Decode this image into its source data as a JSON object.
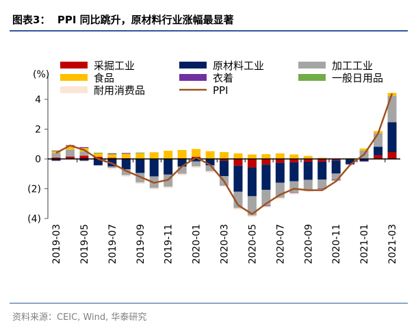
{
  "title": "图表3：  PPI 同比跳升，原材料行业涨幅最显著",
  "source": "资料来源：CEIC, Wind, 华泰研究",
  "chart_data": {
    "type": "bar",
    "stacked": true,
    "ylabel": "(%)",
    "ylim": [
      -4,
      5.6
    ],
    "yticks": [
      4,
      2,
      0,
      -2,
      -4
    ],
    "ytick_labels": [
      "4",
      "2",
      "0",
      "(2)",
      "(4)"
    ],
    "grid": false,
    "legend_position": "top",
    "categories": [
      "2019-03",
      "2019-04",
      "2019-05",
      "2019-06",
      "2019-07",
      "2019-08",
      "2019-09",
      "2019-10",
      "2019-11",
      "2019-12",
      "2020-01",
      "2020-02",
      "2020-03",
      "2020-04",
      "2020-05",
      "2020-06",
      "2020-07",
      "2020-08",
      "2020-09",
      "2020-10",
      "2020-11",
      "2020-12",
      "2021-01",
      "2021-02",
      "2021-03"
    ],
    "xtick_labels": [
      "2019-03",
      "2019-05",
      "2019-07",
      "2019-09",
      "2019-11",
      "2020-01",
      "2020-03",
      "2020-05",
      "2020-07",
      "2020-09",
      "2020-11",
      "2021-01",
      "2021-03"
    ],
    "series": [
      {
        "name": "采掘工业",
        "color": "#C00000",
        "type": "bar",
        "values": [
          0.1,
          0.15,
          0.22,
          0.15,
          0.08,
          0.05,
          0,
          -0.03,
          0,
          0.05,
          0.15,
          0,
          -0.12,
          -0.45,
          -0.57,
          -0.38,
          -0.26,
          -0.22,
          -0.18,
          -0.18,
          -0.1,
          -0.03,
          0,
          0.25,
          0.46
        ]
      },
      {
        "name": "原材料工业",
        "color": "#002060",
        "type": "bar",
        "values": [
          -0.12,
          0.02,
          -0.12,
          -0.43,
          -0.5,
          -0.69,
          -0.94,
          -1.14,
          -1.05,
          -0.51,
          -0.17,
          -0.43,
          -1.03,
          -1.75,
          -1.93,
          -1.69,
          -1.34,
          -1.28,
          -1.22,
          -1.2,
          -0.88,
          -0.31,
          -0.15,
          0.57,
          2.0
        ]
      },
      {
        "name": "加工工业",
        "color": "#A5A5A5",
        "type": "bar",
        "values": [
          0.3,
          0.46,
          0.28,
          0,
          -0.1,
          -0.4,
          -0.64,
          -0.78,
          -0.81,
          -0.49,
          -0.33,
          -0.39,
          -0.65,
          -1.1,
          -1.3,
          -1.06,
          -1.0,
          -0.76,
          -0.7,
          -0.6,
          -0.4,
          0,
          0.55,
          0.9,
          1.77
        ]
      },
      {
        "name": "食品",
        "color": "#FFC000",
        "type": "bar",
        "values": [
          0.12,
          0.26,
          0.23,
          0.22,
          0.23,
          0.3,
          0.38,
          0.45,
          0.55,
          0.55,
          0.52,
          0.52,
          0.46,
          0.37,
          0.3,
          0.32,
          0.37,
          0.3,
          0.2,
          0.08,
          0,
          0.05,
          0.15,
          0.15,
          0.2
        ]
      },
      {
        "name": "衣着",
        "color": "#7030A0",
        "type": "bar",
        "values": [
          0.03,
          0.04,
          0.06,
          0,
          0.04,
          0.05,
          0,
          0,
          0,
          0,
          0,
          0,
          0,
          0,
          0,
          -0.04,
          0,
          -0.03,
          0,
          -0.04,
          -0.04,
          -0.04,
          -0.03,
          0,
          0
        ]
      },
      {
        "name": "一般日用品",
        "color": "#70AD47",
        "type": "bar",
        "values": [
          0.02,
          0,
          0,
          0.05,
          0.04,
          0,
          0.05,
          0,
          0,
          0,
          0,
          0,
          0,
          0,
          0,
          0,
          0,
          0,
          0,
          0,
          -0.03,
          0,
          0,
          0,
          0
        ]
      },
      {
        "name": "耐用消费品",
        "color": "#FBE5D6",
        "type": "bar",
        "values": [
          -0.05,
          0,
          -0.05,
          -0.05,
          -0.1,
          -0.1,
          -0.1,
          -0.1,
          -0.1,
          -0.1,
          -0.1,
          -0.1,
          -0.05,
          -0.1,
          -0.1,
          -0.1,
          -0.1,
          -0.1,
          -0.1,
          -0.1,
          -0.08,
          -0.05,
          -0.05,
          -0.05,
          -0.05
        ]
      },
      {
        "name": "PPI",
        "color": "#A0501E",
        "type": "line",
        "values": [
          0.4,
          0.9,
          0.6,
          0.0,
          -0.3,
          -0.8,
          -1.2,
          -1.6,
          -1.4,
          -0.5,
          0.1,
          -0.4,
          -1.5,
          -3.1,
          -3.7,
          -3.0,
          -2.4,
          -2.0,
          -2.1,
          -2.1,
          -1.5,
          -0.4,
          0.3,
          1.7,
          4.4
        ]
      }
    ]
  }
}
